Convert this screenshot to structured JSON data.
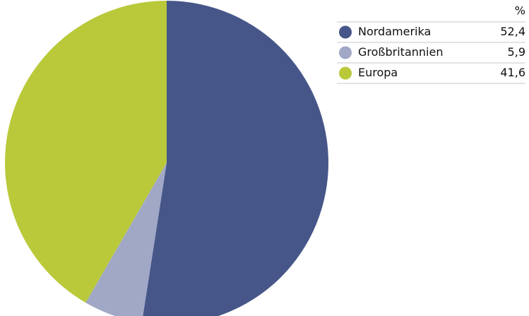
{
  "chart_data": {
    "type": "pie",
    "value_header": "%",
    "categories": [
      "Nordamerika",
      "Großbritannien",
      "Europa"
    ],
    "values": [
      52.4,
      5.9,
      41.6
    ],
    "value_labels": [
      "52,4",
      "5,9",
      "41,6"
    ],
    "colors": [
      "#465689",
      "#a1a8c6",
      "#bac93a"
    ],
    "start_angle": 0,
    "direction": "clockwise"
  }
}
